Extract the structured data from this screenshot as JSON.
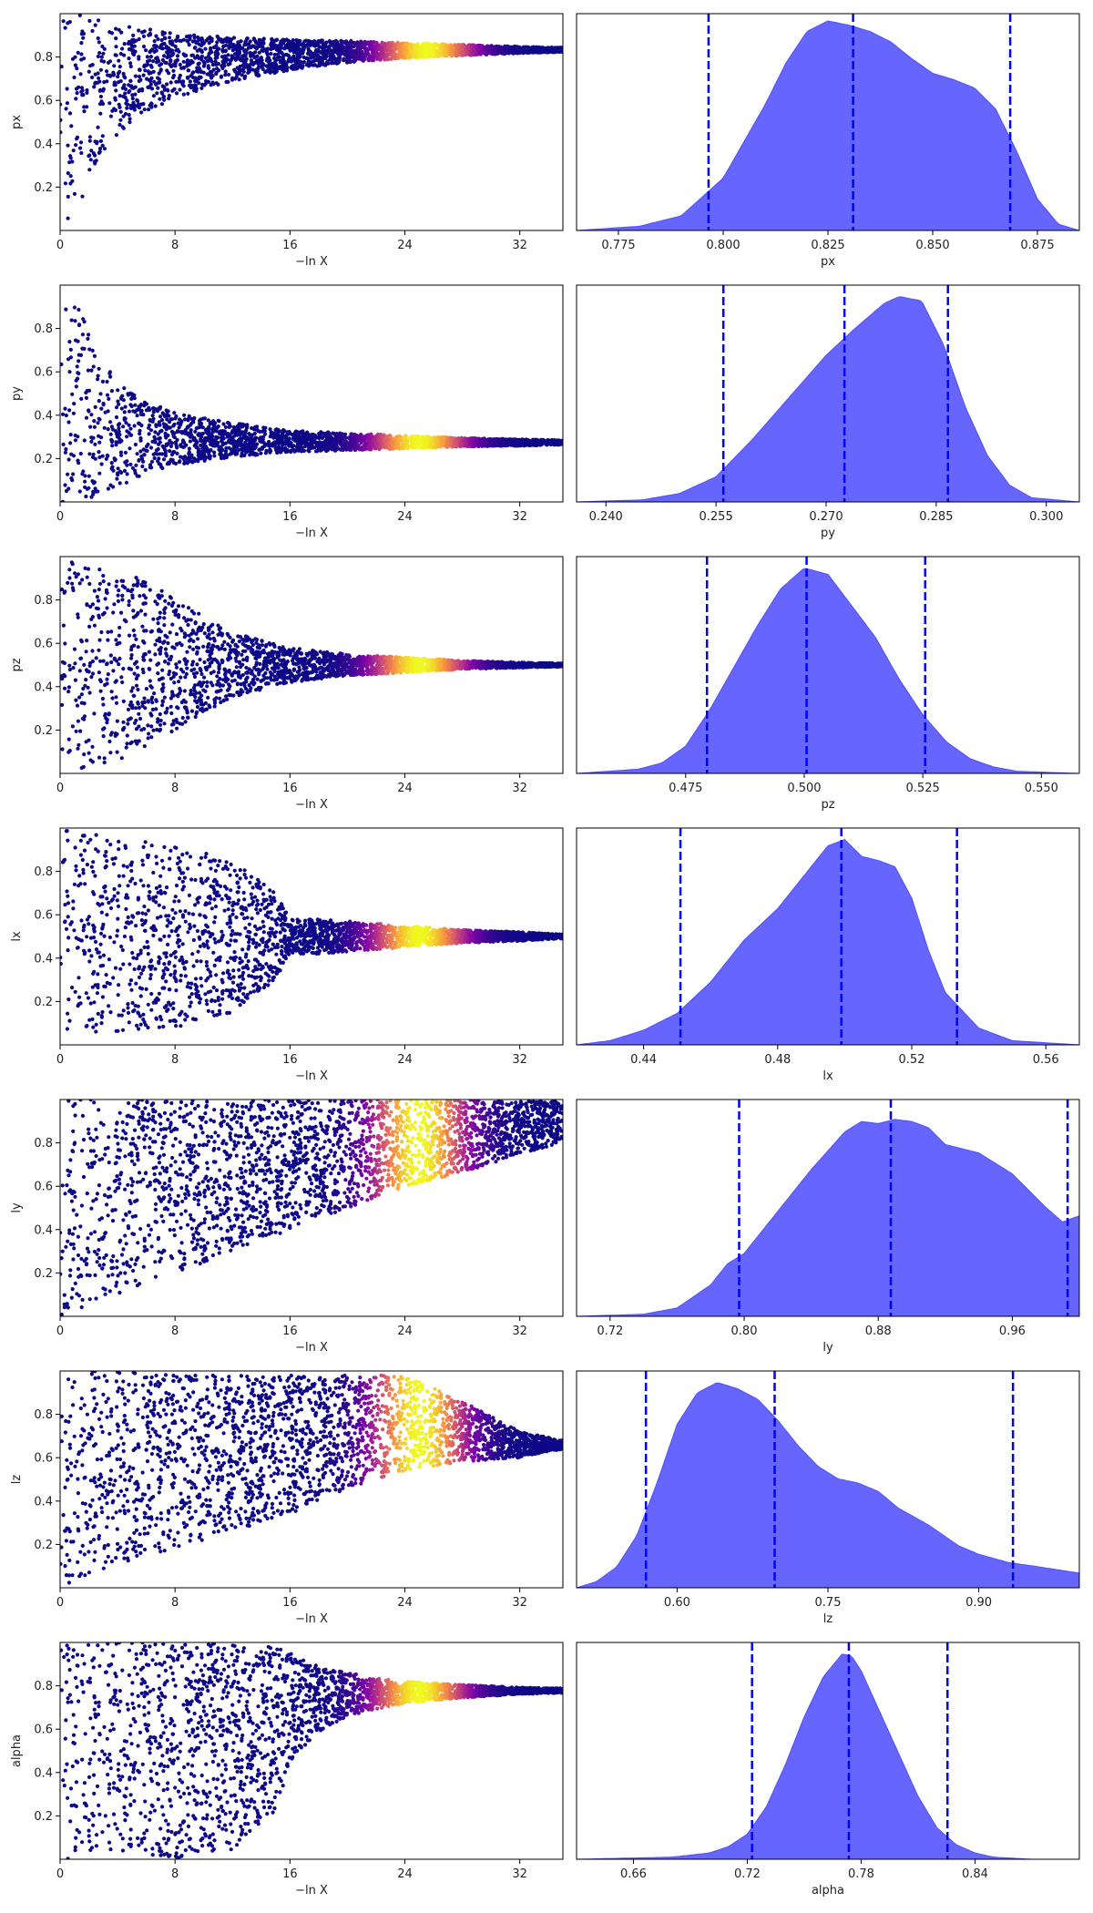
{
  "figure": {
    "style": "dynesty-style trace plot, 7 rows x 2 columns"
  },
  "chart_data": [
    {
      "type": "scatter",
      "param": "px",
      "xlabel": "−ln X",
      "ylabel": "px",
      "xlim": [
        0,
        35
      ],
      "ylim": [
        0,
        1
      ],
      "xticks": [
        0,
        8,
        16,
        24,
        32
      ],
      "yticks": [
        0.2,
        0.4,
        0.6,
        0.8
      ],
      "trend": {
        "x": [
          0,
          1,
          2,
          3,
          5,
          8,
          12,
          16,
          20,
          24,
          28,
          32,
          35
        ],
        "center": [
          0.5,
          0.55,
          0.6,
          0.66,
          0.72,
          0.76,
          0.79,
          0.81,
          0.825,
          0.83,
          0.832,
          0.833,
          0.833
        ],
        "halfwidth": [
          0.5,
          0.48,
          0.4,
          0.3,
          0.22,
          0.15,
          0.1,
          0.07,
          0.05,
          0.035,
          0.025,
          0.015,
          0.01
        ]
      },
      "colormap": "plasma",
      "peak_x": 25.5
    },
    {
      "type": "area",
      "param": "px",
      "xlabel": "px",
      "xlim": [
        0.765,
        0.885
      ],
      "xticks": [
        0.775,
        0.8,
        0.825,
        0.85,
        0.875
      ],
      "x": [
        0.765,
        0.78,
        0.79,
        0.8,
        0.81,
        0.815,
        0.82,
        0.825,
        0.83,
        0.835,
        0.84,
        0.845,
        0.85,
        0.855,
        0.86,
        0.865,
        0.87,
        0.875,
        0.88,
        0.885
      ],
      "density": [
        0,
        0.02,
        0.07,
        0.25,
        0.6,
        0.8,
        0.95,
        1.0,
        0.98,
        0.95,
        0.9,
        0.82,
        0.75,
        0.72,
        0.68,
        0.58,
        0.38,
        0.15,
        0.03,
        0
      ],
      "quantiles": [
        0.7965,
        0.831,
        0.8685
      ],
      "color": "#6666ff",
      "line_color": "#0000ff"
    },
    {
      "type": "scatter",
      "param": "py",
      "xlabel": "−ln X",
      "ylabel": "py",
      "xlim": [
        0,
        35
      ],
      "ylim": [
        0,
        1
      ],
      "xticks": [
        0,
        8,
        16,
        24,
        32
      ],
      "yticks": [
        0.2,
        0.4,
        0.6,
        0.8
      ],
      "trend": {
        "x": [
          0,
          1,
          2,
          3,
          5,
          8,
          12,
          16,
          20,
          24,
          28,
          32,
          35
        ],
        "center": [
          0.5,
          0.45,
          0.4,
          0.34,
          0.3,
          0.29,
          0.285,
          0.28,
          0.278,
          0.276,
          0.275,
          0.274,
          0.274
        ],
        "halfwidth": [
          0.5,
          0.48,
          0.4,
          0.3,
          0.2,
          0.12,
          0.08,
          0.05,
          0.04,
          0.03,
          0.02,
          0.015,
          0.01
        ]
      },
      "colormap": "plasma",
      "peak_x": 25
    },
    {
      "type": "area",
      "param": "py",
      "xlabel": "py",
      "xlim": [
        0.236,
        0.3045
      ],
      "xticks": [
        0.24,
        0.255,
        0.27,
        0.285,
        0.3
      ],
      "x": [
        0.236,
        0.245,
        0.25,
        0.255,
        0.26,
        0.265,
        0.27,
        0.274,
        0.278,
        0.28,
        0.283,
        0.286,
        0.289,
        0.292,
        0.295,
        0.298,
        0.3045
      ],
      "density": [
        0,
        0.01,
        0.04,
        0.12,
        0.3,
        0.5,
        0.7,
        0.83,
        0.95,
        0.98,
        0.96,
        0.75,
        0.45,
        0.22,
        0.08,
        0.02,
        0
      ],
      "quantiles": [
        0.256,
        0.2725,
        0.2866
      ],
      "color": "#6666ff",
      "line_color": "#0000ff"
    },
    {
      "type": "scatter",
      "param": "pz",
      "xlabel": "−ln X",
      "ylabel": "pz",
      "xlim": [
        0,
        35
      ],
      "ylim": [
        0,
        1
      ],
      "xticks": [
        0,
        8,
        16,
        24,
        32
      ],
      "yticks": [
        0.2,
        0.4,
        0.6,
        0.8
      ],
      "trend": {
        "x": [
          0,
          2,
          4,
          6,
          8,
          12,
          16,
          20,
          24,
          28,
          32,
          35
        ],
        "center": [
          0.5,
          0.5,
          0.5,
          0.5,
          0.5,
          0.5,
          0.5,
          0.5,
          0.5,
          0.5,
          0.5,
          0.5
        ],
        "halfwidth": [
          0.5,
          0.48,
          0.45,
          0.4,
          0.3,
          0.15,
          0.08,
          0.05,
          0.035,
          0.02,
          0.012,
          0.008
        ]
      },
      "colormap": "plasma",
      "peak_x": 25
    },
    {
      "type": "area",
      "param": "pz",
      "xlabel": "pz",
      "xlim": [
        0.452,
        0.558
      ],
      "xticks": [
        0.475,
        0.5,
        0.525,
        0.55
      ],
      "x": [
        0.452,
        0.465,
        0.47,
        0.475,
        0.48,
        0.485,
        0.49,
        0.495,
        0.5,
        0.505,
        0.51,
        0.515,
        0.52,
        0.525,
        0.53,
        0.535,
        0.54,
        0.545,
        0.558
      ],
      "density": [
        0,
        0.02,
        0.05,
        0.13,
        0.3,
        0.5,
        0.7,
        0.88,
        0.98,
        0.95,
        0.8,
        0.65,
        0.45,
        0.28,
        0.15,
        0.07,
        0.03,
        0.01,
        0
      ],
      "quantiles": [
        0.4795,
        0.5005,
        0.5255
      ],
      "color": "#6666ff",
      "line_color": "#0000ff"
    },
    {
      "type": "scatter",
      "param": "lx",
      "xlabel": "−ln X",
      "ylabel": "lx",
      "xlim": [
        0,
        35
      ],
      "ylim": [
        0,
        1
      ],
      "xticks": [
        0,
        8,
        16,
        24,
        32
      ],
      "yticks": [
        0.2,
        0.4,
        0.6,
        0.8
      ],
      "trend": {
        "x": [
          0,
          2,
          4,
          8,
          12,
          15,
          16,
          18,
          20,
          24,
          28,
          32,
          35
        ],
        "center": [
          0.5,
          0.5,
          0.5,
          0.5,
          0.5,
          0.5,
          0.5,
          0.5,
          0.5,
          0.5,
          0.5,
          0.5,
          0.5
        ],
        "halfwidth": [
          0.5,
          0.48,
          0.45,
          0.42,
          0.35,
          0.2,
          0.08,
          0.08,
          0.07,
          0.05,
          0.03,
          0.02,
          0.01
        ]
      },
      "colormap": "plasma",
      "peak_x": 25
    },
    {
      "type": "area",
      "param": "lx",
      "xlabel": "lx",
      "xlim": [
        0.42,
        0.57
      ],
      "xticks": [
        0.44,
        0.48,
        0.52,
        0.56
      ],
      "x": [
        0.42,
        0.43,
        0.44,
        0.45,
        0.46,
        0.47,
        0.48,
        0.49,
        0.495,
        0.5,
        0.505,
        0.51,
        0.515,
        0.52,
        0.525,
        0.53,
        0.54,
        0.55,
        0.57
      ],
      "density": [
        0,
        0.02,
        0.07,
        0.15,
        0.3,
        0.5,
        0.65,
        0.85,
        0.95,
        0.98,
        0.9,
        0.88,
        0.85,
        0.7,
        0.45,
        0.25,
        0.08,
        0.02,
        0
      ],
      "quantiles": [
        0.451,
        0.499,
        0.5335
      ],
      "color": "#6666ff",
      "line_color": "#0000ff"
    },
    {
      "type": "scatter",
      "param": "ly",
      "xlabel": "−ln X",
      "ylabel": "ly",
      "xlim": [
        0,
        35
      ],
      "ylim": [
        0,
        1
      ],
      "xticks": [
        0,
        8,
        16,
        24,
        32
      ],
      "yticks": [
        0.2,
        0.4,
        0.6,
        0.8
      ],
      "trend": {
        "x": [
          0,
          4,
          8,
          12,
          16,
          20,
          24,
          28,
          32,
          35
        ],
        "center": [
          0.5,
          0.55,
          0.6,
          0.65,
          0.7,
          0.75,
          0.8,
          0.83,
          0.87,
          0.9
        ],
        "halfwidth": [
          0.5,
          0.45,
          0.4,
          0.35,
          0.3,
          0.25,
          0.2,
          0.17,
          0.12,
          0.1
        ]
      },
      "colormap": "plasma",
      "peak_x": 25
    },
    {
      "type": "area",
      "param": "ly",
      "xlabel": "ly",
      "xlim": [
        0.7,
        1.0
      ],
      "xticks": [
        0.72,
        0.8,
        0.88,
        0.96
      ],
      "x": [
        0.7,
        0.74,
        0.76,
        0.78,
        0.79,
        0.8,
        0.82,
        0.84,
        0.86,
        0.87,
        0.88,
        0.89,
        0.9,
        0.91,
        0.92,
        0.94,
        0.96,
        0.98,
        0.99,
        1.0
      ],
      "density": [
        0,
        0.01,
        0.04,
        0.15,
        0.25,
        0.3,
        0.5,
        0.7,
        0.88,
        0.93,
        0.92,
        0.94,
        0.93,
        0.9,
        0.82,
        0.78,
        0.68,
        0.52,
        0.45,
        0.48
      ],
      "quantiles": [
        0.797,
        0.8875,
        0.993
      ],
      "color": "#6666ff",
      "line_color": "#0000ff"
    },
    {
      "type": "scatter",
      "param": "lz",
      "xlabel": "−ln X",
      "ylabel": "lz",
      "xlim": [
        0,
        35
      ],
      "ylim": [
        0,
        1
      ],
      "xticks": [
        0,
        8,
        16,
        24,
        32
      ],
      "yticks": [
        0.2,
        0.4,
        0.6,
        0.8
      ],
      "trend": {
        "x": [
          0,
          4,
          8,
          12,
          16,
          20,
          24,
          28,
          32,
          35
        ],
        "center": [
          0.5,
          0.55,
          0.58,
          0.62,
          0.66,
          0.72,
          0.76,
          0.72,
          0.66,
          0.66
        ],
        "halfwidth": [
          0.5,
          0.45,
          0.4,
          0.36,
          0.32,
          0.26,
          0.22,
          0.14,
          0.06,
          0.02
        ]
      },
      "colormap": "plasma",
      "peak_x": 25
    },
    {
      "type": "area",
      "param": "lz",
      "xlabel": "lz",
      "xlim": [
        0.5,
        1.0
      ],
      "xticks": [
        0.6,
        0.75,
        0.9
      ],
      "x": [
        0.5,
        0.52,
        0.54,
        0.56,
        0.58,
        0.6,
        0.62,
        0.64,
        0.66,
        0.68,
        0.7,
        0.72,
        0.74,
        0.76,
        0.78,
        0.8,
        0.82,
        0.85,
        0.88,
        0.9,
        0.93,
        0.96,
        1.0
      ],
      "density": [
        0,
        0.03,
        0.1,
        0.25,
        0.5,
        0.78,
        0.93,
        0.98,
        0.95,
        0.9,
        0.8,
        0.68,
        0.58,
        0.52,
        0.5,
        0.46,
        0.38,
        0.3,
        0.2,
        0.16,
        0.12,
        0.1,
        0.07
      ],
      "quantiles": [
        0.569,
        0.697,
        0.934
      ],
      "color": "#6666ff",
      "line_color": "#0000ff"
    },
    {
      "type": "scatter",
      "param": "alpha",
      "xlabel": "−ln X",
      "ylabel": "alpha",
      "xlim": [
        0,
        35
      ],
      "ylim": [
        0,
        1
      ],
      "xticks": [
        0,
        8,
        16,
        24,
        32
      ],
      "yticks": [
        0.2,
        0.4,
        0.6,
        0.8
      ],
      "trend": {
        "x": [
          0,
          4,
          8,
          12,
          15,
          16,
          18,
          20,
          24,
          28,
          32,
          35
        ],
        "center": [
          0.5,
          0.5,
          0.5,
          0.52,
          0.6,
          0.7,
          0.74,
          0.76,
          0.77,
          0.775,
          0.777,
          0.778
        ],
        "halfwidth": [
          0.5,
          0.5,
          0.5,
          0.48,
          0.38,
          0.25,
          0.15,
          0.1,
          0.05,
          0.03,
          0.015,
          0.01
        ]
      },
      "colormap": "plasma",
      "peak_x": 25
    },
    {
      "type": "area",
      "param": "alpha",
      "xlabel": "alpha",
      "xlim": [
        0.63,
        0.895
      ],
      "xticks": [
        0.66,
        0.72,
        0.78,
        0.84
      ],
      "x": [
        0.63,
        0.68,
        0.7,
        0.71,
        0.72,
        0.73,
        0.74,
        0.75,
        0.76,
        0.77,
        0.775,
        0.78,
        0.79,
        0.8,
        0.81,
        0.82,
        0.83,
        0.84,
        0.85,
        0.87,
        0.895
      ],
      "density": [
        0,
        0.01,
        0.03,
        0.06,
        0.12,
        0.25,
        0.45,
        0.68,
        0.87,
        0.98,
        0.97,
        0.9,
        0.7,
        0.5,
        0.3,
        0.15,
        0.07,
        0.03,
        0.01,
        0,
        0
      ],
      "quantiles": [
        0.7225,
        0.7735,
        0.8255
      ],
      "color": "#6666ff",
      "line_color": "#0000ff"
    }
  ]
}
